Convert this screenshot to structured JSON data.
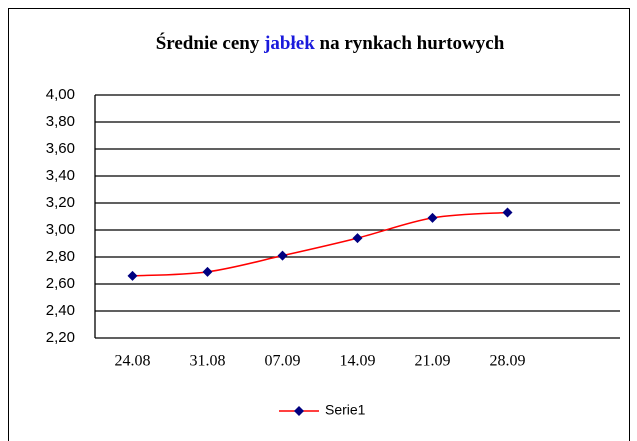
{
  "chart_data": {
    "type": "line",
    "title": [
      {
        "text": "Średnie ceny",
        "color": "#000000"
      },
      {
        "text": "jabłek",
        "color": "#1a1adc"
      },
      {
        "text": "na rynkach hurtowych",
        "color": "#000000"
      }
    ],
    "categories": [
      "24.08",
      "31.08",
      "07.09",
      "14.09",
      "21.09",
      "28.09",
      null
    ],
    "series": [
      {
        "name": "Serie1",
        "color": "#ff0000",
        "marker_color": "#000080",
        "values": [
          2.66,
          2.69,
          2.81,
          2.94,
          3.09,
          3.13,
          null
        ]
      }
    ],
    "ylim": [
      2.2,
      4.0
    ],
    "yticks": [
      {
        "value": 2.2,
        "label": "2,20"
      },
      {
        "value": 2.4,
        "label": "2,40"
      },
      {
        "value": 2.6,
        "label": "2,60"
      },
      {
        "value": 2.8,
        "label": "2,80"
      },
      {
        "value": 3.0,
        "label": "3,00"
      },
      {
        "value": 3.2,
        "label": "3,20"
      },
      {
        "value": 3.4,
        "label": "3,40"
      },
      {
        "value": 3.6,
        "label": "3,60"
      },
      {
        "value": 3.8,
        "label": "3,80"
      },
      {
        "value": 4.0,
        "label": "4,00"
      }
    ],
    "grid": true,
    "smooth": true,
    "legend": "bottom"
  }
}
